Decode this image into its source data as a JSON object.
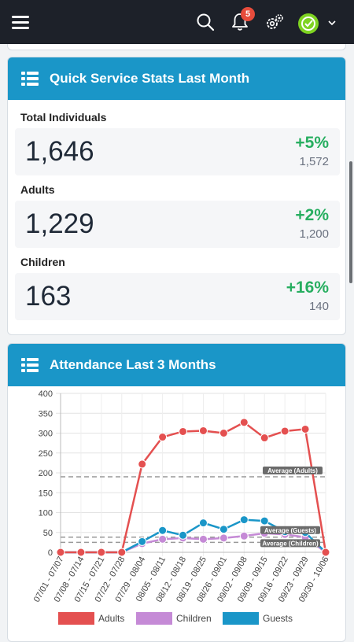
{
  "header": {
    "notification_count": "5",
    "icons": [
      "menu-icon",
      "search-icon",
      "bell-icon",
      "settings-icon",
      "avatar",
      "chevron-down-icon"
    ]
  },
  "quick_stats": {
    "title": "Quick Service Stats Last Month",
    "items": [
      {
        "label": "Total Individuals",
        "value": "1,646",
        "change": "+5%",
        "previous": "1,572"
      },
      {
        "label": "Adults",
        "value": "1,229",
        "change": "+2%",
        "previous": "1,200"
      },
      {
        "label": "Children",
        "value": "163",
        "change": "+16%",
        "previous": "140"
      }
    ]
  },
  "attendance": {
    "title": "Attendance Last 3 Months"
  },
  "colors": {
    "adults": "#e45050",
    "children": "#c58ad6",
    "guests": "#1a96c8",
    "accent": "#1a96c8",
    "positive": "#27ae60"
  },
  "chart_data": {
    "type": "line",
    "categories": [
      "07/01 - 07/07",
      "07/08 - 07/14",
      "07/15 - 07/21",
      "07/22 - 07/28",
      "07/29 - 08/04",
      "08/05 - 08/11",
      "08/12 - 08/18",
      "08/19 - 08/25",
      "08/26 - 09/01",
      "09/02 - 09/08",
      "09/09 - 09/15",
      "09/16 - 09/22",
      "09/23 - 09/29",
      "09/30 - 10/06"
    ],
    "series": [
      {
        "name": "Adults",
        "values": [
          0,
          0,
          0,
          0,
          222,
          290,
          304,
          306,
          300,
          327,
          288,
          305,
          310,
          0
        ]
      },
      {
        "name": "Children",
        "values": [
          0,
          0,
          0,
          0,
          22,
          33,
          36,
          33,
          36,
          41,
          48,
          45,
          38,
          0
        ]
      },
      {
        "name": "Guests",
        "values": [
          0,
          0,
          0,
          0,
          27,
          55,
          43,
          74,
          58,
          82,
          79,
          52,
          50,
          0
        ]
      }
    ],
    "averages": [
      {
        "label": "Average (Adults)",
        "value": 190
      },
      {
        "label": "Average (Guests)",
        "value": 38
      },
      {
        "label": "Average (Children)",
        "value": 25
      }
    ],
    "ylim": [
      0,
      400
    ],
    "yticks": [
      0,
      50,
      100,
      150,
      200,
      250,
      300,
      350,
      400
    ],
    "grid": true,
    "legend": "bottom"
  }
}
